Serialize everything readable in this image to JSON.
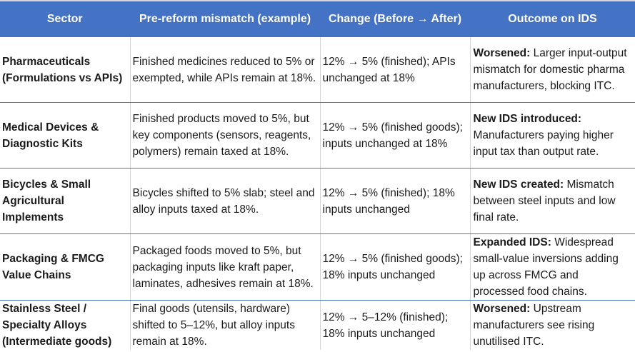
{
  "table": {
    "headers": [
      "Sector",
      "Pre-reform mismatch (example)",
      "Change (Before → After)",
      "Outcome on IDS"
    ],
    "rows": [
      {
        "sector": "Pharmaceuticals (Formulations vs APIs)",
        "mismatch": "Finished medicines reduced to 5% or exempted, while APIs remain at 18%.",
        "change": "12% → 5% (finished); APIs unchanged at 18%",
        "outcome_label": "Worsened:",
        "outcome_text": " Larger input-output mismatch for domestic pharma manufacturers, blocking ITC."
      },
      {
        "sector": "Medical Devices & Diagnostic Kits",
        "mismatch": "Finished products moved to 5%, but key components (sensors, reagents, polymers) remain taxed at 18%.",
        "change": "12% → 5% (finished goods); inputs unchanged at 18%",
        "outcome_label": "New IDS introduced:",
        "outcome_text": " Manufacturers paying higher input tax than output rate."
      },
      {
        "sector": "Bicycles & Small Agricultural Implements",
        "mismatch": "Bicycles shifted to 5% slab; steel and alloy inputs taxed at 18%.",
        "change": "12% → 5% (finished); 18% inputs unchanged",
        "outcome_label": "New IDS created:",
        "outcome_text": " Mismatch between steel inputs and low final rate."
      },
      {
        "sector": "Packaging & FMCG Value Chains",
        "mismatch": "Packaged foods moved to 5%, but packaging inputs like kraft paper, laminates, adhesives remain at 18%.",
        "change": "12% → 5% (finished goods); 18% inputs unchanged",
        "outcome_label": "Expanded IDS:",
        "outcome_text": " Widespread small-value inversions adding up across FMCG and processed food chains."
      },
      {
        "sector": "Stainless Steel / Specialty Alloys (Intermediate goods)",
        "mismatch": "Final goods (utensils, hardware) shifted to 5–12%, but alloy inputs remain at 18%.",
        "change": "12% → 5–12% (finished); 18% inputs unchanged",
        "outcome_label": "Worsened:",
        "outcome_text": " Upstream manufacturers see rising unutilised ITC."
      }
    ]
  },
  "colors": {
    "header_bg": "#4472c4",
    "header_text": "#ffffff",
    "row_border": "#4a74c0",
    "col_border": "#d4d4d4"
  }
}
